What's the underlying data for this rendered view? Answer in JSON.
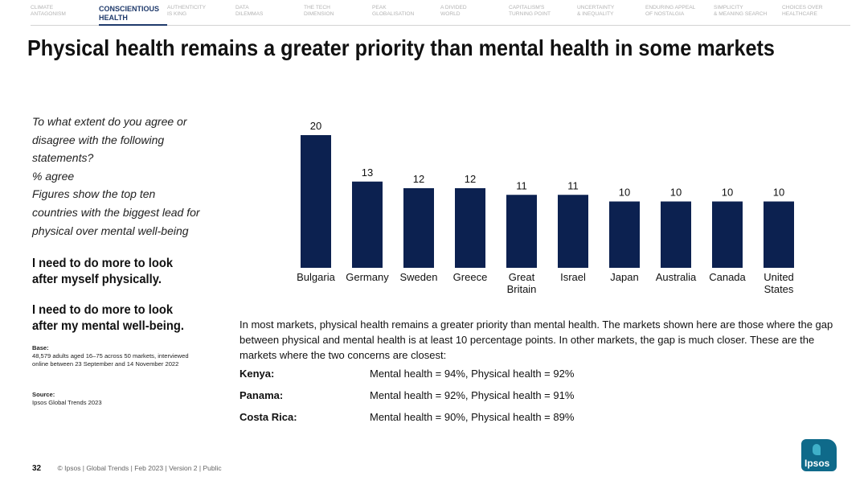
{
  "nav": [
    {
      "l1": "CLIMATE",
      "l2": "ANTAGONISM",
      "active": false
    },
    {
      "l1": "CONSCIENTIOUS",
      "l2": "HEALTH",
      "active": true
    },
    {
      "l1": "AUTHENTICITY",
      "l2": "IS KING",
      "active": false
    },
    {
      "l1": "DATA",
      "l2": "DILEMMAS",
      "active": false
    },
    {
      "l1": "THE TECH",
      "l2": "DIMENSION",
      "active": false
    },
    {
      "l1": "PEAK",
      "l2": "GLOBALISATION",
      "active": false
    },
    {
      "l1": "A DIVIDED",
      "l2": "WORLD",
      "active": false
    },
    {
      "l1": "CAPITALISM'S",
      "l2": "TURNING POINT",
      "active": false
    },
    {
      "l1": "UNCERTAINTY",
      "l2": "& INEQUALITY",
      "active": false
    },
    {
      "l1": "ENDURING APPEAL",
      "l2": "OF NOSTALGIA",
      "active": false
    },
    {
      "l1": "SIMPLICITY",
      "l2": "& MEANING SEARCH",
      "active": false
    },
    {
      "l1": "CHOICES OVER",
      "l2": "HEALTHCARE",
      "active": false
    }
  ],
  "title": "Physical health remains a greater priority than mental health in some markets",
  "question": {
    "lines": [
      "To what extent do you agree or",
      "disagree with the following",
      "statements?",
      "% agree",
      "Figures show the top ten",
      "countries with the biggest lead for",
      "physical over mental well-being"
    ]
  },
  "statements": [
    {
      "l1": "I need to do more to look",
      "l2": "after myself physically."
    },
    {
      "l1": "I need to do more to look",
      "l2": "after my mental well-being."
    }
  ],
  "base": {
    "heading": "Base:",
    "text": "48,579 adults aged 16–75 across 50 markets, interviewed online between 23 September and 14 November 2022"
  },
  "source": {
    "heading": "Source:",
    "text": "Ipsos Global Trends 2023"
  },
  "chart_data": {
    "type": "bar",
    "categories": [
      "Bulgaria",
      "Germany",
      "Sweden",
      "Greece",
      "Great Britain",
      "Israel",
      "Japan",
      "Australia",
      "Canada",
      "United States"
    ],
    "category_lines": [
      [
        "Bulgaria"
      ],
      [
        "Germany"
      ],
      [
        "Sweden"
      ],
      [
        "Greece"
      ],
      [
        "Great",
        "Britain"
      ],
      [
        "Israel"
      ],
      [
        "Japan"
      ],
      [
        "Australia"
      ],
      [
        "Canada"
      ],
      [
        "United",
        "States"
      ]
    ],
    "values": [
      20,
      13,
      12,
      12,
      11,
      11,
      10,
      10,
      10,
      10
    ],
    "ylim": [
      0,
      20
    ],
    "bar_color": "#0c2150",
    "grid": false,
    "title": "",
    "xlabel": "",
    "ylabel": ""
  },
  "note": "In most markets, physical health remains a greater priority than mental health. The markets shown here are those where the gap between physical and mental health is at least 10 percentage points. In other markets, the gap is much closer. These are the markets where the two concerns are closest:",
  "closest": [
    {
      "market": "Kenya:",
      "value": "Mental health = 94%, Physical health = 92%"
    },
    {
      "market": "Panama:",
      "value": "Mental health = 92%, Physical health = 91%"
    },
    {
      "market": "Costa Rica:",
      "value": "Mental health = 90%, Physical health = 89%"
    }
  ],
  "footer": {
    "page": "32",
    "text": "© Ipsos | Global Trends | Feb 2023 | Version 2 | Public"
  },
  "logo": {
    "text": "Ipsos",
    "color": "#0f6a8a"
  }
}
